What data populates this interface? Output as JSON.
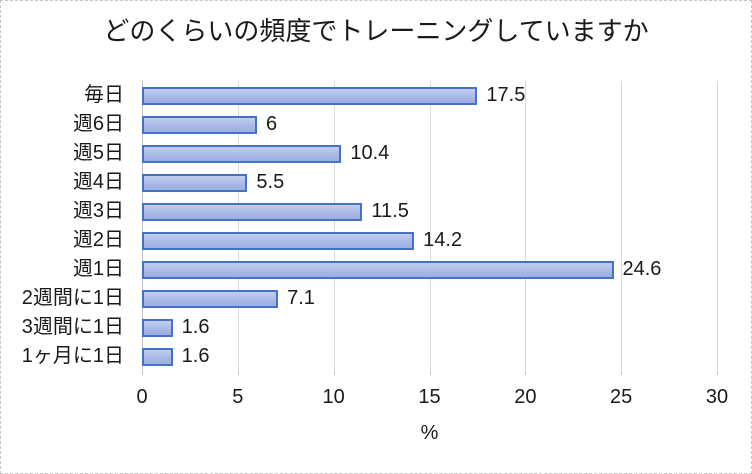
{
  "chart_data": {
    "type": "bar",
    "orientation": "horizontal",
    "title": "どのくらいの頻度でトレーニングしていますか",
    "categories": [
      "毎日",
      "週6日",
      "週5日",
      "週4日",
      "週3日",
      "週2日",
      "週1日",
      "2週間に1日",
      "3週間に1日",
      "1ヶ月に1日"
    ],
    "values": [
      17.5,
      6,
      10.4,
      5.5,
      11.5,
      14.2,
      24.6,
      7.1,
      1.6,
      1.6
    ],
    "value_labels": [
      "17.5",
      "6",
      "10.4",
      "5.5",
      "11.5",
      "14.2",
      "24.6",
      "7.1",
      "1.6",
      "1.6"
    ],
    "xlabel": "%",
    "xlim": [
      0,
      30
    ],
    "x_ticks": [
      "0",
      "5",
      "10",
      "15",
      "20",
      "25",
      "30"
    ],
    "grid": "vertical-on",
    "legend": "none",
    "colors": {
      "bar_border": "#4472c4",
      "bar_fill_light": "#c2cdf0",
      "bar_fill_dark": "#9bafe1",
      "gridline": "#d9d9d9",
      "axis_line": "#c3c3c3",
      "text": "#1a1a1a",
      "background": "#ffffff"
    }
  }
}
